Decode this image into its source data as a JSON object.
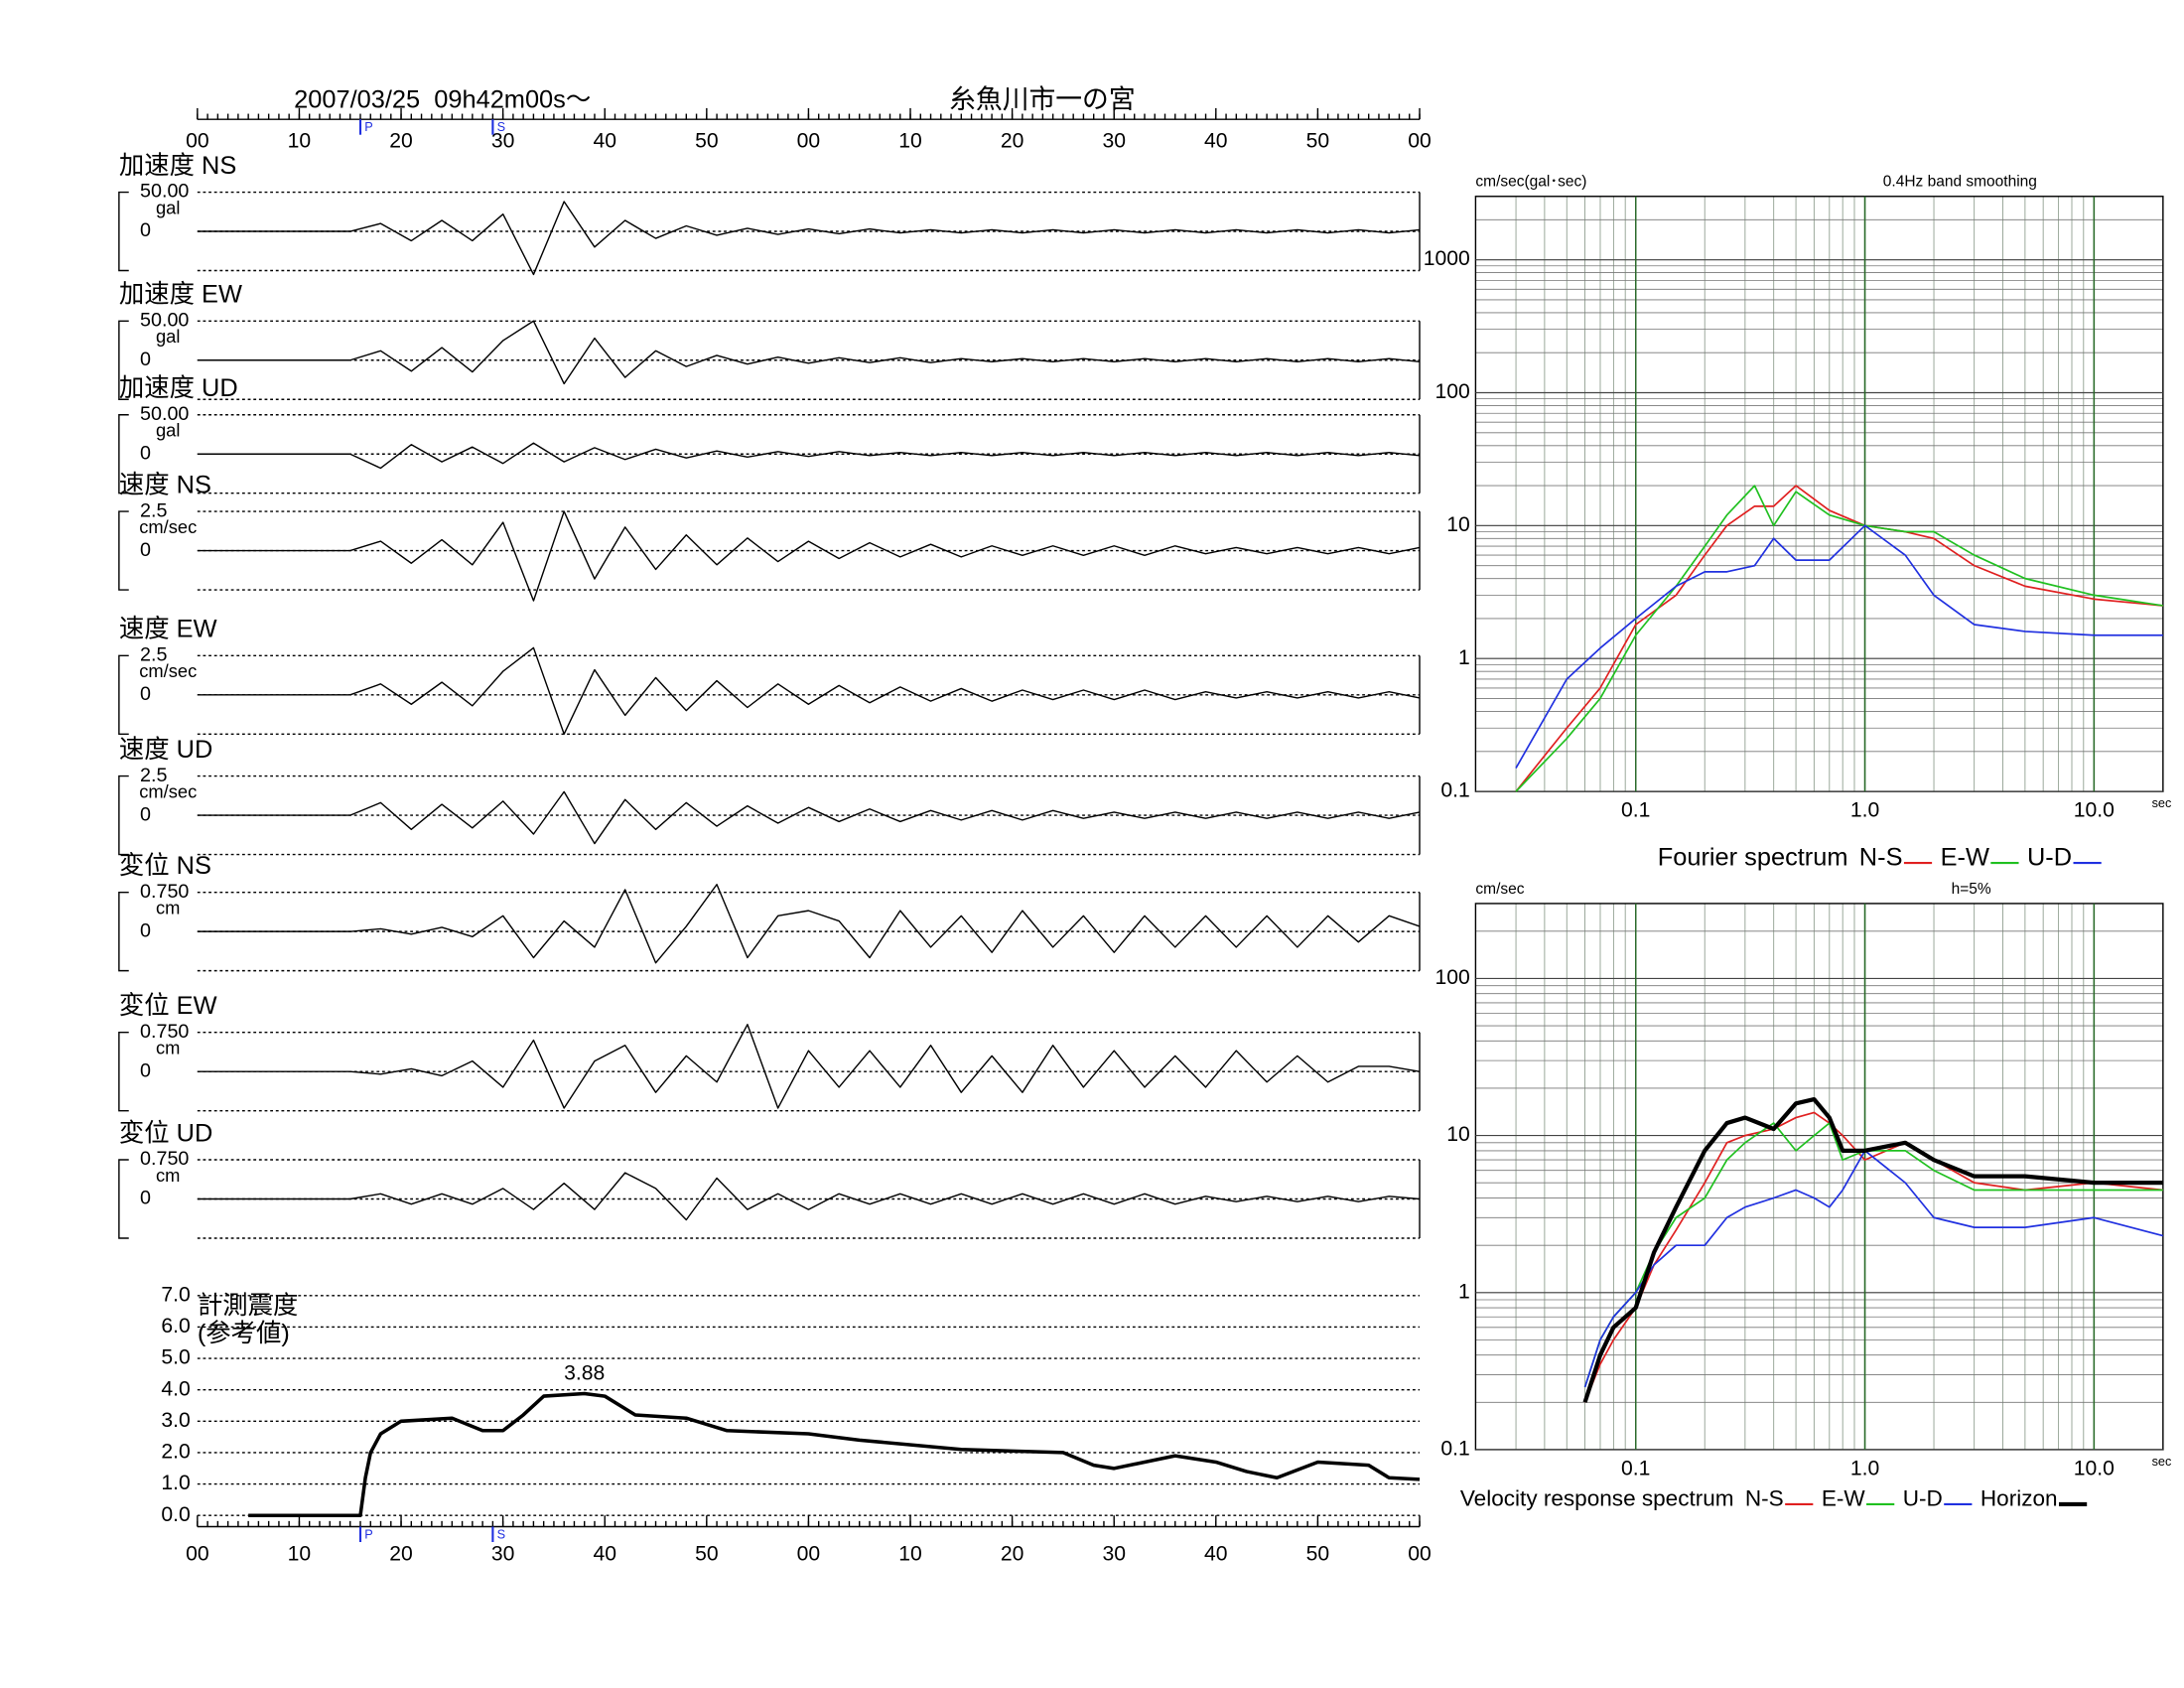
{
  "header": {
    "datetime": "2007/03/25  09h42m00s〜",
    "station": "糸魚川市一の宮"
  },
  "time_axis": {
    "xlim": [
      0,
      120
    ],
    "xticks": [
      {
        "value": 0,
        "label": "00"
      },
      10,
      20,
      30,
      40,
      50,
      {
        "value": 60,
        "label": "00"
      },
      {
        "value": 70,
        "label": "10"
      },
      {
        "value": 80,
        "label": "20"
      },
      {
        "value": 90,
        "label": "30"
      },
      {
        "value": 100,
        "label": "40"
      },
      {
        "value": 110,
        "label": "50"
      },
      {
        "value": 120,
        "label": "00"
      }
    ],
    "p": {
      "label": "P",
      "value": 16
    },
    "s": {
      "label": "S",
      "value": 29
    }
  },
  "chart_data": [
    {
      "type": "line",
      "label": "加速度 NS",
      "unit": "gal",
      "ylim": [
        -50,
        50
      ],
      "yticks": [
        {
          "value": 50,
          "label": "50.00"
        },
        0
      ],
      "color": "#000000",
      "x": [
        0,
        3,
        6,
        9,
        12,
        15,
        18,
        21,
        24,
        27,
        30,
        33,
        36,
        39,
        42,
        45,
        48,
        51,
        54,
        57,
        60,
        63,
        66,
        69,
        72,
        75,
        78,
        81,
        84,
        87,
        90,
        93,
        96,
        99,
        102,
        105,
        108,
        111,
        114,
        117,
        120
      ],
      "values": [
        0,
        0,
        0,
        0,
        0,
        0,
        10,
        -12,
        14,
        -12,
        22,
        -55,
        38,
        -20,
        14,
        -9,
        7,
        -5,
        4,
        -4,
        3,
        -3,
        3,
        -2,
        2,
        -2,
        2,
        -2,
        2,
        -2,
        2,
        -2,
        2,
        -2,
        2,
        -2,
        2,
        -2,
        2,
        -2,
        2
      ]
    },
    {
      "type": "line",
      "label": "加速度 EW",
      "unit": "gal",
      "ylim": [
        -50,
        50
      ],
      "yticks": [
        {
          "value": 50,
          "label": "50.00"
        },
        0
      ],
      "color": "#000000",
      "x": [
        0,
        3,
        6,
        9,
        12,
        15,
        18,
        21,
        24,
        27,
        30,
        33,
        36,
        39,
        42,
        45,
        48,
        51,
        54,
        57,
        60,
        63,
        66,
        69,
        72,
        75,
        78,
        81,
        84,
        87,
        90,
        93,
        96,
        99,
        102,
        105,
        108,
        111,
        114,
        117,
        120
      ],
      "values": [
        0,
        0,
        0,
        0,
        0,
        0,
        12,
        -14,
        16,
        -15,
        25,
        50,
        -30,
        28,
        -22,
        12,
        -8,
        6,
        -5,
        4,
        -4,
        3,
        -3,
        3,
        -3,
        2,
        -2,
        2,
        -2,
        2,
        -2,
        2,
        -2,
        2,
        -2,
        2,
        -2,
        2,
        -2,
        2,
        -2
      ]
    },
    {
      "type": "line",
      "label": "加速度 UD",
      "unit": "gal",
      "ylim": [
        -50,
        50
      ],
      "yticks": [
        {
          "value": 50,
          "label": "50.00"
        },
        0
      ],
      "color": "#000000",
      "x": [
        0,
        3,
        6,
        9,
        12,
        15,
        18,
        21,
        24,
        27,
        30,
        33,
        36,
        39,
        42,
        45,
        48,
        51,
        54,
        57,
        60,
        63,
        66,
        69,
        72,
        75,
        78,
        81,
        84,
        87,
        90,
        93,
        96,
        99,
        102,
        105,
        108,
        111,
        114,
        117,
        120
      ],
      "values": [
        0,
        0,
        0,
        0,
        0,
        0,
        -18,
        12,
        -10,
        9,
        -12,
        14,
        -10,
        8,
        -7,
        6,
        -5,
        4,
        -4,
        3,
        -3,
        3,
        -2,
        2,
        -2,
        2,
        -2,
        2,
        -2,
        2,
        -2,
        2,
        -2,
        2,
        -2,
        2,
        -2,
        2,
        -2,
        2,
        -2
      ]
    },
    {
      "type": "line",
      "label": "速度 NS",
      "unit": "cm/sec",
      "ylim": [
        -2.5,
        2.5
      ],
      "yticks": [
        2.5,
        0
      ],
      "color": "#000000",
      "x": [
        0,
        3,
        6,
        9,
        12,
        15,
        18,
        21,
        24,
        27,
        30,
        33,
        36,
        39,
        42,
        45,
        48,
        51,
        54,
        57,
        60,
        63,
        66,
        69,
        72,
        75,
        78,
        81,
        84,
        87,
        90,
        93,
        96,
        99,
        102,
        105,
        108,
        111,
        114,
        117,
        120
      ],
      "values": [
        0,
        0,
        0,
        0,
        0,
        0,
        0.6,
        -0.8,
        0.7,
        -0.9,
        1.8,
        -3.2,
        2.5,
        -1.8,
        1.5,
        -1.2,
        1,
        -0.9,
        0.8,
        -0.7,
        0.6,
        -0.5,
        0.5,
        -0.4,
        0.4,
        -0.4,
        0.3,
        -0.3,
        0.3,
        -0.3,
        0.3,
        -0.3,
        0.3,
        -0.2,
        0.2,
        -0.2,
        0.2,
        -0.2,
        0.2,
        -0.2,
        0.2
      ]
    },
    {
      "type": "line",
      "label": "速度 EW",
      "unit": "cm/sec",
      "ylim": [
        -2.5,
        2.5
      ],
      "yticks": [
        2.5,
        0
      ],
      "color": "#000000",
      "x": [
        0,
        3,
        6,
        9,
        12,
        15,
        18,
        21,
        24,
        27,
        30,
        33,
        36,
        39,
        42,
        45,
        48,
        51,
        54,
        57,
        60,
        63,
        66,
        69,
        72,
        75,
        78,
        81,
        84,
        87,
        90,
        93,
        96,
        99,
        102,
        105,
        108,
        111,
        114,
        117,
        120
      ],
      "values": [
        0,
        0,
        0,
        0,
        0,
        0,
        0.7,
        -0.6,
        0.8,
        -0.7,
        1.5,
        3,
        -2.5,
        1.6,
        -1.3,
        1.1,
        -1,
        0.9,
        -0.8,
        0.7,
        -0.6,
        0.6,
        -0.5,
        0.5,
        -0.4,
        0.4,
        -0.4,
        0.3,
        -0.3,
        0.3,
        -0.3,
        0.3,
        -0.3,
        0.2,
        -0.2,
        0.2,
        -0.2,
        0.2,
        -0.2,
        0.2,
        -0.2
      ]
    },
    {
      "type": "line",
      "label": "速度 UD",
      "unit": "cm/sec",
      "ylim": [
        -2.5,
        2.5
      ],
      "yticks": [
        2.5,
        0
      ],
      "color": "#000000",
      "x": [
        0,
        3,
        6,
        9,
        12,
        15,
        18,
        21,
        24,
        27,
        30,
        33,
        36,
        39,
        42,
        45,
        48,
        51,
        54,
        57,
        60,
        63,
        66,
        69,
        72,
        75,
        78,
        81,
        84,
        87,
        90,
        93,
        96,
        99,
        102,
        105,
        108,
        111,
        114,
        117,
        120
      ],
      "values": [
        0,
        0,
        0,
        0,
        0,
        0,
        0.8,
        -0.9,
        0.7,
        -0.8,
        0.9,
        -1.2,
        1.5,
        -1.8,
        1,
        -0.9,
        0.8,
        -0.7,
        0.6,
        -0.5,
        0.5,
        -0.4,
        0.4,
        -0.4,
        0.3,
        -0.3,
        0.3,
        -0.3,
        0.3,
        -0.2,
        0.2,
        -0.2,
        0.2,
        -0.2,
        0.2,
        -0.2,
        0.2,
        -0.2,
        0.2,
        -0.2,
        0.2
      ]
    },
    {
      "type": "line",
      "label": "変位 NS",
      "unit": "cm",
      "ylim": [
        -0.75,
        0.75
      ],
      "yticks": [
        {
          "value": 0.75,
          "label": "0.750"
        },
        0
      ],
      "color": "#000000",
      "x": [
        0,
        3,
        6,
        9,
        12,
        15,
        18,
        21,
        24,
        27,
        30,
        33,
        36,
        39,
        42,
        45,
        48,
        51,
        54,
        57,
        60,
        63,
        66,
        69,
        72,
        75,
        78,
        81,
        84,
        87,
        90,
        93,
        96,
        99,
        102,
        105,
        108,
        111,
        114,
        117,
        120
      ],
      "values": [
        0,
        0,
        0,
        0,
        0,
        0,
        0.05,
        -0.05,
        0.08,
        -0.1,
        0.3,
        -0.5,
        0.2,
        -0.3,
        0.8,
        -0.6,
        0.1,
        0.9,
        -0.5,
        0.3,
        0.4,
        0.2,
        -0.5,
        0.4,
        -0.3,
        0.3,
        -0.4,
        0.4,
        -0.3,
        0.3,
        -0.4,
        0.3,
        -0.3,
        0.3,
        -0.3,
        0.3,
        -0.3,
        0.3,
        -0.2,
        0.3,
        0.1
      ]
    },
    {
      "type": "line",
      "label": "変位 EW",
      "unit": "cm",
      "ylim": [
        -0.75,
        0.75
      ],
      "yticks": [
        {
          "value": 0.75,
          "label": "0.750"
        },
        0
      ],
      "color": "#000000",
      "x": [
        0,
        3,
        6,
        9,
        12,
        15,
        18,
        21,
        24,
        27,
        30,
        33,
        36,
        39,
        42,
        45,
        48,
        51,
        54,
        57,
        60,
        63,
        66,
        69,
        72,
        75,
        78,
        81,
        84,
        87,
        90,
        93,
        96,
        99,
        102,
        105,
        108,
        111,
        114,
        117,
        120
      ],
      "values": [
        0,
        0,
        0,
        0,
        0,
        0,
        -0.05,
        0.05,
        -0.08,
        0.2,
        -0.3,
        0.6,
        -0.7,
        0.2,
        0.5,
        -0.4,
        0.3,
        -0.2,
        0.9,
        -0.7,
        0.4,
        -0.3,
        0.4,
        -0.3,
        0.5,
        -0.4,
        0.3,
        -0.4,
        0.5,
        -0.3,
        0.4,
        -0.3,
        0.3,
        -0.3,
        0.4,
        -0.2,
        0.3,
        -0.2,
        0.1,
        0.1,
        0
      ]
    },
    {
      "type": "line",
      "label": "変位 UD",
      "unit": "cm",
      "ylim": [
        -0.75,
        0.75
      ],
      "yticks": [
        {
          "value": 0.75,
          "label": "0.750"
        },
        0
      ],
      "color": "#000000",
      "x": [
        0,
        3,
        6,
        9,
        12,
        15,
        18,
        21,
        24,
        27,
        30,
        33,
        36,
        39,
        42,
        45,
        48,
        51,
        54,
        57,
        60,
        63,
        66,
        69,
        72,
        75,
        78,
        81,
        84,
        87,
        90,
        93,
        96,
        99,
        102,
        105,
        108,
        111,
        114,
        117,
        120
      ],
      "values": [
        0,
        0,
        0,
        0,
        0,
        0,
        0.1,
        -0.1,
        0.1,
        -0.1,
        0.2,
        -0.2,
        0.3,
        -0.2,
        0.5,
        0.2,
        -0.4,
        0.4,
        -0.2,
        0.1,
        -0.2,
        0.1,
        -0.1,
        0.1,
        -0.1,
        0.1,
        -0.1,
        0.1,
        -0.1,
        0.1,
        -0.1,
        0.1,
        -0.1,
        0.05,
        -0.05,
        0.05,
        -0.05,
        0.05,
        -0.05,
        0.05,
        0
      ]
    },
    {
      "type": "intensity",
      "title": [
        "計測震度",
        "(参考値)"
      ],
      "ylim": [
        0,
        7
      ],
      "yticks": [
        {
          "value": 0,
          "label": "0.0"
        },
        {
          "value": 1,
          "label": "1.0"
        },
        {
          "value": 2,
          "label": "2.0"
        },
        {
          "value": 3,
          "label": "3.0"
        },
        {
          "value": 4,
          "label": "4.0"
        },
        {
          "value": 5,
          "label": "5.0"
        },
        {
          "value": 6,
          "label": "6.0"
        },
        {
          "value": 7,
          "label": "7.0"
        }
      ],
      "color": "#000000",
      "peak_index": 11,
      "x": [
        5,
        16,
        16.5,
        17,
        18,
        20,
        25,
        28,
        30,
        32,
        34,
        38,
        40,
        43,
        48,
        52,
        60,
        65,
        75,
        85,
        88,
        90,
        96,
        100,
        103,
        106,
        110,
        115,
        117,
        120
      ],
      "values": [
        0,
        0,
        1.2,
        2,
        2.6,
        3,
        3.1,
        2.7,
        2.7,
        3.2,
        3.8,
        3.88,
        3.8,
        3.2,
        3.1,
        2.7,
        2.6,
        2.4,
        2.1,
        2.0,
        1.6,
        1.5,
        1.9,
        1.7,
        1.4,
        1.2,
        1.7,
        1.6,
        1.2,
        1.15
      ]
    },
    {
      "type": "loglog",
      "unit": "cm/sec(gal･sec)",
      "note": "0.4Hz band smoothing",
      "xlabel": "sec",
      "legend_title": "Fourier spectrum",
      "log_x": true,
      "log_y": true,
      "grid": true,
      "xlim": [
        0.02,
        20
      ],
      "ylim": [
        0.1,
        3000
      ],
      "xticks": [
        0.1,
        {
          "value": 1,
          "label": "1.0"
        },
        {
          "value": 10,
          "label": "10.0"
        }
      ],
      "yticks": [
        0.1,
        1,
        10,
        100,
        1000
      ],
      "x": [
        0.03,
        0.05,
        0.07,
        0.1,
        0.15,
        0.2,
        0.25,
        0.33,
        0.4,
        0.5,
        0.7,
        1,
        1.5,
        2,
        3,
        5,
        10,
        20
      ],
      "series": [
        {
          "name": "N-S",
          "color": "#e02020",
          "values": [
            0.1,
            0.3,
            0.6,
            1.8,
            3,
            6,
            10,
            14,
            14,
            20,
            13,
            10,
            9,
            8,
            5,
            3.5,
            2.8,
            2.5
          ]
        },
        {
          "name": "E-W",
          "color": "#20c020",
          "values": [
            0.1,
            0.25,
            0.5,
            1.5,
            3.5,
            7,
            12,
            20,
            10,
            18,
            12,
            10,
            9,
            9,
            6,
            4,
            3,
            2.5
          ]
        },
        {
          "name": "U-D",
          "color": "#2030e0",
          "values": [
            0.15,
            0.7,
            1.2,
            2,
            3.5,
            4.5,
            4.5,
            5,
            8,
            5.5,
            5.5,
            10,
            6,
            3,
            1.8,
            1.6,
            1.5,
            1.5
          ]
        }
      ]
    },
    {
      "type": "loglog",
      "unit": "cm/sec",
      "note": "h=5%",
      "xlabel": "sec",
      "legend_title": "Velocity response spectrum",
      "log_x": true,
      "log_y": true,
      "grid": true,
      "xlim": [
        0.02,
        20
      ],
      "ylim": [
        0.1,
        300
      ],
      "xticks": [
        0.1,
        {
          "value": 1,
          "label": "1.0"
        },
        {
          "value": 10,
          "label": "10.0"
        }
      ],
      "yticks": [
        0.1,
        1,
        10,
        100
      ],
      "x": [
        0.06,
        0.07,
        0.08,
        0.1,
        0.12,
        0.15,
        0.2,
        0.25,
        0.3,
        0.4,
        0.5,
        0.6,
        0.7,
        0.8,
        1,
        1.5,
        2,
        3,
        5,
        10,
        20
      ],
      "series": [
        {
          "name": "N-S",
          "color": "#e02020",
          "values": [
            0.2,
            0.35,
            0.5,
            0.8,
            1.5,
            2.5,
            5,
            9,
            10,
            11,
            13,
            14,
            12,
            10,
            7,
            9,
            7,
            5,
            4.5,
            5,
            4.5
          ]
        },
        {
          "name": "E-W",
          "color": "#20c020",
          "values": [
            0.25,
            0.5,
            0.7,
            1,
            1.8,
            3,
            4,
            7,
            9,
            12,
            8,
            10,
            12,
            7,
            8,
            8,
            6,
            4.5,
            4.5,
            4.5,
            4.5
          ]
        },
        {
          "name": "U-D",
          "color": "#2030e0",
          "values": [
            0.25,
            0.5,
            0.7,
            1,
            1.5,
            2,
            2,
            3,
            3.5,
            4,
            4.5,
            4,
            3.5,
            4.5,
            8,
            5,
            3,
            2.6,
            2.6,
            3,
            2.3
          ]
        },
        {
          "name": "Horizon",
          "color": "#000000",
          "width": 3,
          "values": [
            0.2,
            0.4,
            0.6,
            0.8,
            1.8,
            3.5,
            8,
            12,
            13,
            11,
            16,
            17,
            13,
            8,
            8,
            9,
            7,
            5.5,
            5.5,
            5,
            5
          ]
        }
      ]
    }
  ]
}
